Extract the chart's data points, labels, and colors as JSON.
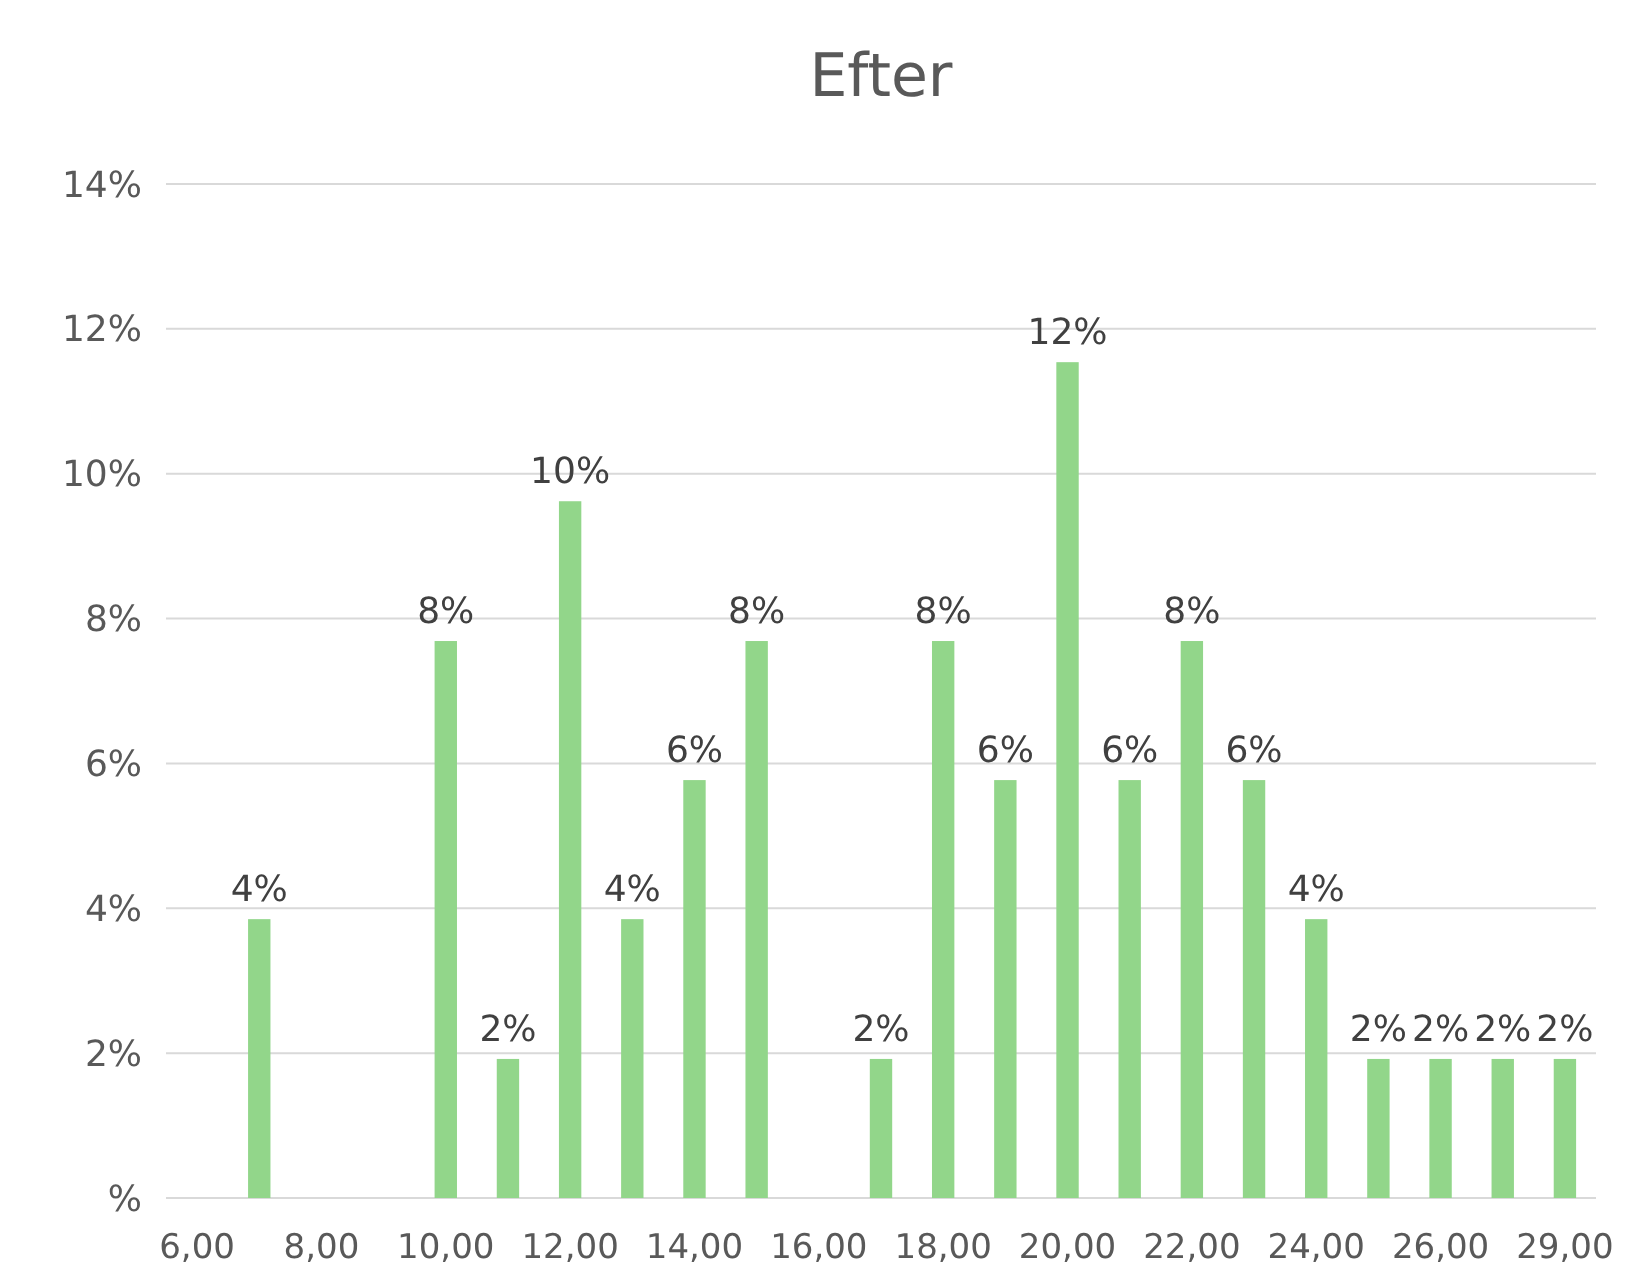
{
  "chart_data": {
    "type": "bar",
    "title": "Efter",
    "categories": [
      "6,00",
      null,
      "8,00",
      null,
      "10,00",
      null,
      "12,00",
      null,
      "14,00",
      null,
      "16,00",
      null,
      "18,00",
      null,
      "20,00",
      null,
      "22,00",
      null,
      "24,00",
      null,
      "26,00",
      null,
      "29,00"
    ],
    "values": [
      null,
      3.85,
      null,
      null,
      7.69,
      1.92,
      9.62,
      3.85,
      5.77,
      7.69,
      null,
      1.92,
      7.69,
      5.77,
      11.54,
      5.77,
      7.69,
      5.77,
      3.85,
      1.92,
      1.92,
      1.92,
      1.92
    ],
    "value_labels": [
      null,
      "4%",
      null,
      null,
      "8%",
      "2%",
      "10%",
      "4%",
      "6%",
      "8%",
      null,
      "2%",
      "8%",
      "6%",
      "12%",
      "6%",
      "8%",
      "6%",
      "4%",
      "2%",
      "2%",
      "2%",
      "2%"
    ],
    "color": "#92d68a",
    "ylim": [
      0,
      14
    ],
    "yticks": [
      {
        "value": 0,
        "label": "%"
      },
      {
        "value": 2,
        "label": "2%"
      },
      {
        "value": 4,
        "label": "4%"
      },
      {
        "value": 6,
        "label": "6%"
      },
      {
        "value": 8,
        "label": "8%"
      },
      {
        "value": 10,
        "label": "10%"
      },
      {
        "value": 12,
        "label": "12%"
      },
      {
        "value": 14,
        "label": "14%"
      }
    ],
    "grid": "y"
  }
}
